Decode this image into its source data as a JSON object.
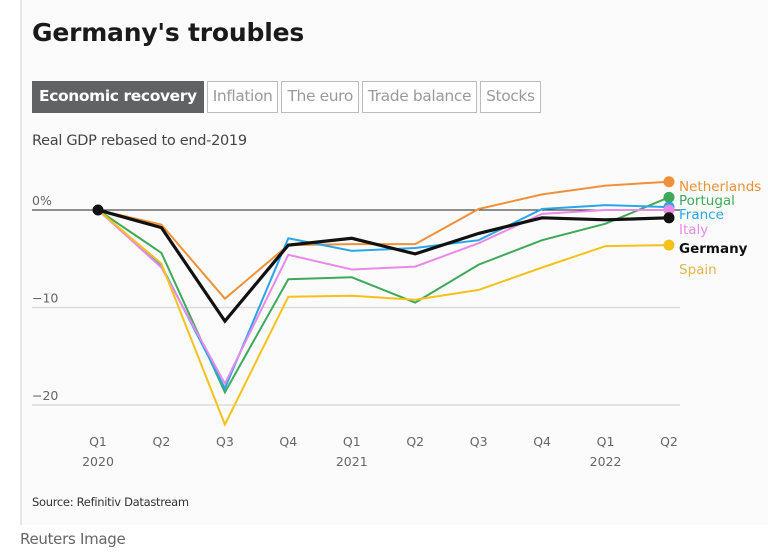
{
  "header": {
    "title": "Germany's troubles",
    "tabs": [
      {
        "label": "Economic recovery",
        "active": true
      },
      {
        "label": "Inflation",
        "active": false
      },
      {
        "label": "The euro",
        "active": false
      },
      {
        "label": "Trade balance",
        "active": false
      },
      {
        "label": "Stocks",
        "active": false
      }
    ],
    "subtitle": "Real GDP rebased to end-2019"
  },
  "footer": {
    "source": "Source: Refinitiv Datastream",
    "credit": "Reuters Image"
  },
  "chart_data": {
    "type": "line",
    "title": "Real GDP rebased to end-2019",
    "xlabel": "",
    "ylabel": "",
    "ylim": [
      -22.5,
      3.5
    ],
    "y_ticks": [
      {
        "value": 0,
        "label": "0%"
      },
      {
        "value": -10,
        "label": "−10"
      },
      {
        "value": -20,
        "label": "−20"
      }
    ],
    "x": [
      "Q1 2020",
      "Q2 2020",
      "Q3 2020",
      "Q4 2020",
      "Q1 2021",
      "Q2 2021",
      "Q3 2021",
      "Q4 2021",
      "Q1 2022",
      "Q2 2022"
    ],
    "x_tick_labels": [
      {
        "quarter": "Q1",
        "year": "2020"
      },
      {
        "quarter": "Q2",
        "year": ""
      },
      {
        "quarter": "Q3",
        "year": ""
      },
      {
        "quarter": "Q4",
        "year": ""
      },
      {
        "quarter": "Q1",
        "year": "2021"
      },
      {
        "quarter": "Q2",
        "year": ""
      },
      {
        "quarter": "Q3",
        "year": ""
      },
      {
        "quarter": "Q4",
        "year": ""
      },
      {
        "quarter": "Q1",
        "year": "2022"
      },
      {
        "quarter": "Q2",
        "year": ""
      }
    ],
    "grid": true,
    "legend": "end-of-line labels (right)",
    "series": [
      {
        "name": "Netherlands",
        "color": "#f0913a",
        "bold": false,
        "values": [
          0,
          -1.5,
          -9.1,
          -3.6,
          -3.5,
          -3.5,
          0.1,
          1.6,
          2.5,
          2.9
        ]
      },
      {
        "name": "Portugal",
        "color": "#3fa95a",
        "bold": false,
        "values": [
          0,
          -4.4,
          -18.7,
          -7.1,
          -6.9,
          -9.5,
          -5.6,
          -3.1,
          -1.4,
          1.3
        ]
      },
      {
        "name": "France",
        "color": "#2aa6e8",
        "bold": false,
        "values": [
          0,
          -5.7,
          -18.3,
          -2.9,
          -4.2,
          -3.9,
          -3.1,
          0.1,
          0.5,
          0.3
        ]
      },
      {
        "name": "Italy",
        "color": "#e98ae8",
        "bold": false,
        "values": [
          0,
          -5.9,
          -17.8,
          -4.6,
          -6.1,
          -5.8,
          -3.4,
          -0.4,
          0.0,
          0.0
        ]
      },
      {
        "name": "Spain",
        "color": "#f6c11d",
        "bold": false,
        "values": [
          0,
          -5.5,
          -22.0,
          -8.9,
          -8.8,
          -9.2,
          -8.2,
          -5.9,
          -3.7,
          -3.6
        ]
      },
      {
        "name": "Germany",
        "color": "#111111",
        "bold": true,
        "values": [
          0,
          -1.8,
          -11.4,
          -3.6,
          -2.9,
          -4.5,
          -2.4,
          -0.8,
          -1.0,
          -0.8
        ]
      }
    ],
    "label_order": [
      "Netherlands",
      "Portugal",
      "France",
      "Italy",
      "Germany",
      "Spain"
    ]
  }
}
